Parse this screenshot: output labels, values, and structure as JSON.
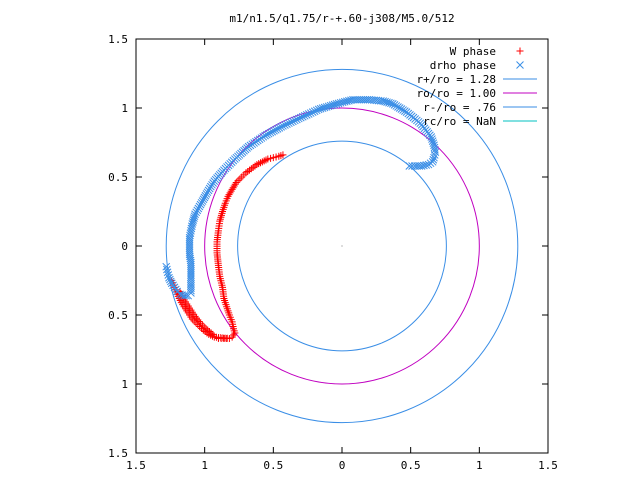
{
  "chart_data": {
    "type": "scatter",
    "title": "m1/n1.5/q1.75/r-+.60-j308/M5.0/512",
    "xlabel": "",
    "ylabel": "",
    "xlim": [
      -1.5,
      1.5
    ],
    "ylim": [
      -1.5,
      1.5
    ],
    "grid": false,
    "legend_position": "top-right",
    "x_ticks": [
      {
        "value": -1.5,
        "label": "1.5"
      },
      {
        "value": -1.0,
        "label": "1"
      },
      {
        "value": -0.5,
        "label": "0.5"
      },
      {
        "value": 0.0,
        "label": "0"
      },
      {
        "value": 0.5,
        "label": "0.5"
      },
      {
        "value": 1.0,
        "label": "1"
      },
      {
        "value": 1.5,
        "label": "1.5"
      }
    ],
    "y_ticks": [
      {
        "value": 1.5,
        "label": "1.5"
      },
      {
        "value": 1.0,
        "label": "1"
      },
      {
        "value": 0.5,
        "label": "0.5"
      },
      {
        "value": 0.0,
        "label": "0"
      },
      {
        "value": -0.5,
        "label": "0.5"
      },
      {
        "value": -1.0,
        "label": "1"
      },
      {
        "value": -1.5,
        "label": "1.5"
      }
    ],
    "series": [
      {
        "name": "W phase",
        "kind": "points",
        "marker": "plus",
        "color": "#ff0000",
        "points": [
          [
            -0.9,
            -0.67
          ],
          [
            -0.86,
            -0.67
          ],
          [
            -0.82,
            -0.67
          ],
          [
            -0.93,
            -0.66
          ],
          [
            -0.97,
            -0.64
          ],
          [
            -1.01,
            -0.61
          ],
          [
            -1.05,
            -0.57
          ],
          [
            -1.09,
            -0.53
          ],
          [
            -1.13,
            -0.47
          ],
          [
            -1.17,
            -0.41
          ],
          [
            -1.2,
            -0.35
          ],
          [
            -1.22,
            -0.3
          ],
          [
            -1.24,
            -0.25
          ],
          [
            -0.94,
            -0.64
          ],
          [
            -0.99,
            -0.6
          ],
          [
            -1.03,
            -0.56
          ],
          [
            -1.07,
            -0.51
          ],
          [
            -1.11,
            -0.45
          ],
          [
            -1.15,
            -0.39
          ],
          [
            -1.18,
            -0.33
          ],
          [
            -0.8,
            -0.66
          ],
          [
            -0.78,
            -0.63
          ],
          [
            -0.79,
            -0.6
          ],
          [
            -0.8,
            -0.55
          ],
          [
            -0.82,
            -0.5
          ],
          [
            -0.84,
            -0.44
          ],
          [
            -0.86,
            -0.38
          ],
          [
            -0.87,
            -0.3
          ],
          [
            -0.89,
            -0.22
          ],
          [
            -0.9,
            -0.14
          ],
          [
            -0.91,
            -0.05
          ],
          [
            -0.91,
            0.03
          ],
          [
            -0.9,
            0.11
          ],
          [
            -0.89,
            0.18
          ],
          [
            -0.87,
            0.25
          ],
          [
            -0.85,
            0.31
          ],
          [
            -0.83,
            0.36
          ],
          [
            -0.8,
            0.41
          ],
          [
            -0.77,
            0.46
          ],
          [
            -0.73,
            0.5
          ],
          [
            -0.7,
            0.53
          ],
          [
            -0.66,
            0.56
          ],
          [
            -0.62,
            0.59
          ],
          [
            -0.58,
            0.61
          ],
          [
            -0.54,
            0.63
          ],
          [
            -0.5,
            0.64
          ],
          [
            -0.46,
            0.65
          ],
          [
            -0.43,
            0.66
          ]
        ]
      },
      {
        "name": "drho phase",
        "kind": "points",
        "marker": "x",
        "color": "#3a8ee6",
        "points": [
          [
            -1.28,
            -0.15
          ],
          [
            -1.27,
            -0.19
          ],
          [
            -1.26,
            -0.23
          ],
          [
            -1.24,
            -0.27
          ],
          [
            -1.22,
            -0.3
          ],
          [
            -1.2,
            -0.33
          ],
          [
            -1.18,
            -0.35
          ],
          [
            -1.15,
            -0.36
          ],
          [
            -1.12,
            -0.36
          ],
          [
            -1.1,
            -0.34
          ],
          [
            -1.1,
            -0.29
          ],
          [
            -1.1,
            -0.24
          ],
          [
            -1.1,
            -0.18
          ],
          [
            -1.1,
            -0.12
          ],
          [
            -1.11,
            -0.06
          ],
          [
            -1.11,
            0.0
          ],
          [
            -1.11,
            0.06
          ],
          [
            -1.1,
            0.11
          ],
          [
            -1.09,
            0.16
          ],
          [
            -1.07,
            0.23
          ],
          [
            -1.03,
            0.3
          ],
          [
            -0.98,
            0.39
          ],
          [
            -0.93,
            0.47
          ],
          [
            -0.86,
            0.55
          ],
          [
            -0.78,
            0.63
          ],
          [
            -0.68,
            0.72
          ],
          [
            -0.56,
            0.8
          ],
          [
            -0.43,
            0.87
          ],
          [
            -0.3,
            0.93
          ],
          [
            -0.17,
            0.99
          ],
          [
            -0.04,
            1.03
          ],
          [
            0.08,
            1.06
          ],
          [
            0.2,
            1.06
          ],
          [
            0.3,
            1.05
          ],
          [
            0.37,
            1.03
          ],
          [
            0.42,
            1.0
          ],
          [
            0.47,
            0.97
          ],
          [
            0.52,
            0.93
          ],
          [
            0.57,
            0.89
          ],
          [
            0.61,
            0.84
          ],
          [
            0.65,
            0.79
          ],
          [
            0.67,
            0.73
          ],
          [
            0.68,
            0.68
          ],
          [
            0.67,
            0.64
          ],
          [
            0.66,
            0.61
          ],
          [
            0.63,
            0.59
          ],
          [
            0.58,
            0.58
          ],
          [
            0.53,
            0.58
          ],
          [
            0.49,
            0.58
          ]
        ]
      },
      {
        "name": "r+/ro = 1.28",
        "kind": "circle",
        "radius": 1.28,
        "color": "#3a8ee6"
      },
      {
        "name": "ro/ro = 1.00",
        "kind": "circle",
        "radius": 1.0,
        "color": "#c000c0"
      },
      {
        "name": "r-/ro = .76",
        "kind": "circle",
        "radius": 0.76,
        "color": "#3a8ee6"
      },
      {
        "name": "rc/ro = NaN",
        "kind": "circle",
        "radius": null,
        "color": "#00c0c0"
      }
    ]
  }
}
